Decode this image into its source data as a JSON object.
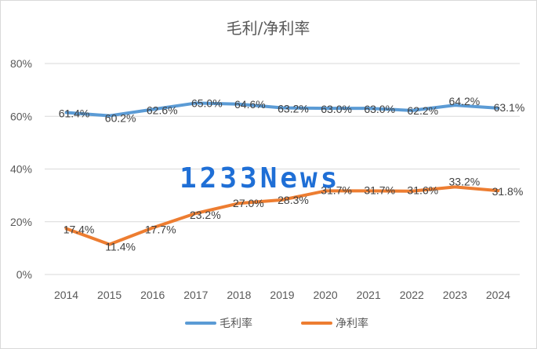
{
  "chart_data": {
    "type": "line",
    "title": "毛利/净利率",
    "categories": [
      "2014",
      "2015",
      "2016",
      "2017",
      "2018",
      "2019",
      "2020",
      "2021",
      "2022",
      "2023",
      "2024"
    ],
    "ylim": [
      0,
      80
    ],
    "yticks": [
      "0%",
      "20%",
      "40%",
      "60%",
      "80%"
    ],
    "grid": true,
    "legend_placement": "bottom",
    "series": [
      {
        "name": "毛利率",
        "color": "#5b9bd5",
        "values": [
          61.4,
          60.2,
          62.6,
          65.0,
          64.6,
          63.2,
          63.0,
          63.0,
          62.2,
          64.2,
          63.1
        ],
        "labels": [
          "61.4%",
          "60.2%",
          "62.6%",
          "65.0%",
          "64.6%",
          "63.2%",
          "63.0%",
          "63.0%",
          "62.2%",
          "64.2%",
          "63.1%"
        ]
      },
      {
        "name": "净利率",
        "color": "#ed7d31",
        "values": [
          17.4,
          11.4,
          17.7,
          23.2,
          27.0,
          28.3,
          31.7,
          31.7,
          31.6,
          33.2,
          31.8
        ],
        "labels": [
          "17.4%",
          "11.4%",
          "17.7%",
          "23.2%",
          "27.0%",
          "28.3%",
          "31.7%",
          "31.7%",
          "31.6%",
          "33.2%",
          "31.8%"
        ]
      }
    ]
  },
  "watermark": "1233News"
}
